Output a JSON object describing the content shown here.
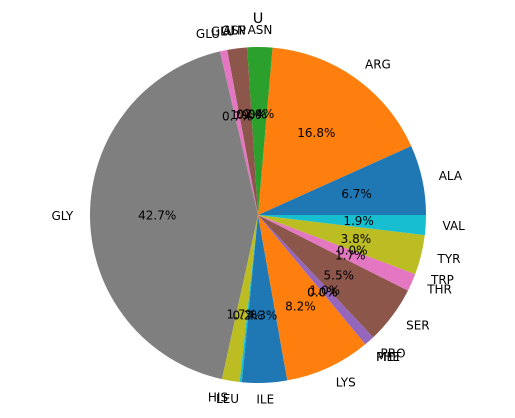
{
  "chart_data": {
    "type": "pie",
    "title": "U",
    "start_angle_deg": 0,
    "direction": "counterclockwise",
    "slices": [
      {
        "label": "ALA",
        "value": 6.7,
        "pct_label": "6.7%",
        "color": "#1f77b4"
      },
      {
        "label": "ARG",
        "value": 16.8,
        "pct_label": "16.8%",
        "color": "#ff7f0e"
      },
      {
        "label": "ASN",
        "value": 2.4,
        "pct_label": "2.4%",
        "color": "#2ca02c"
      },
      {
        "label": "ASP",
        "value": 0.0,
        "pct_label": "0.0%",
        "color": "#d62728"
      },
      {
        "label": "GLN",
        "value": 0.0,
        "pct_label": "0.0%",
        "color": "#9467bd"
      },
      {
        "label": "GLU",
        "value": 1.9,
        "pct_label": "1.9%",
        "color": "#8c564b"
      },
      {
        "label": "GLY_A",
        "display": "GLU",
        "value": 0.7,
        "pct_label": "0.7%",
        "color": "#e377c2"
      },
      {
        "label": "GLY",
        "value": 42.7,
        "pct_label": "42.7%",
        "color": "#7f7f7f"
      },
      {
        "label": "HIS",
        "value": 1.7,
        "pct_label": "1.7%",
        "color": "#bcbd22"
      },
      {
        "label": "LEU",
        "value": 0.2,
        "pct_label": "0.2%",
        "color": "#17becf"
      },
      {
        "label": "ILE",
        "value": 4.3,
        "pct_label": "4.3%",
        "color": "#1f77b4"
      },
      {
        "label": "LYS",
        "value": 8.2,
        "pct_label": "8.2%",
        "color": "#ff7f0e"
      },
      {
        "label": "MET",
        "value": 0.0,
        "pct_label": "0.0%",
        "color": "#2ca02c"
      },
      {
        "label": "PHE",
        "value": 0.0,
        "pct_label": "0.0%",
        "color": "#d62728"
      },
      {
        "label": "PRO",
        "value": 1.0,
        "pct_label": "1.0%",
        "color": "#9467bd"
      },
      {
        "label": "SER",
        "value": 5.5,
        "pct_label": "5.5%",
        "color": "#8c564b"
      },
      {
        "label": "THR",
        "value": 1.7,
        "pct_label": "1.7%",
        "color": "#e377c2"
      },
      {
        "label": "TRP",
        "value": 0.0,
        "pct_label": "0.0%",
        "color": "#7f7f7f"
      },
      {
        "label": "TYR",
        "value": 3.8,
        "pct_label": "3.8%",
        "color": "#bcbd22"
      },
      {
        "label": "VAL",
        "value": 1.9,
        "pct_label": "1.9%",
        "color": "#17becf"
      }
    ]
  }
}
